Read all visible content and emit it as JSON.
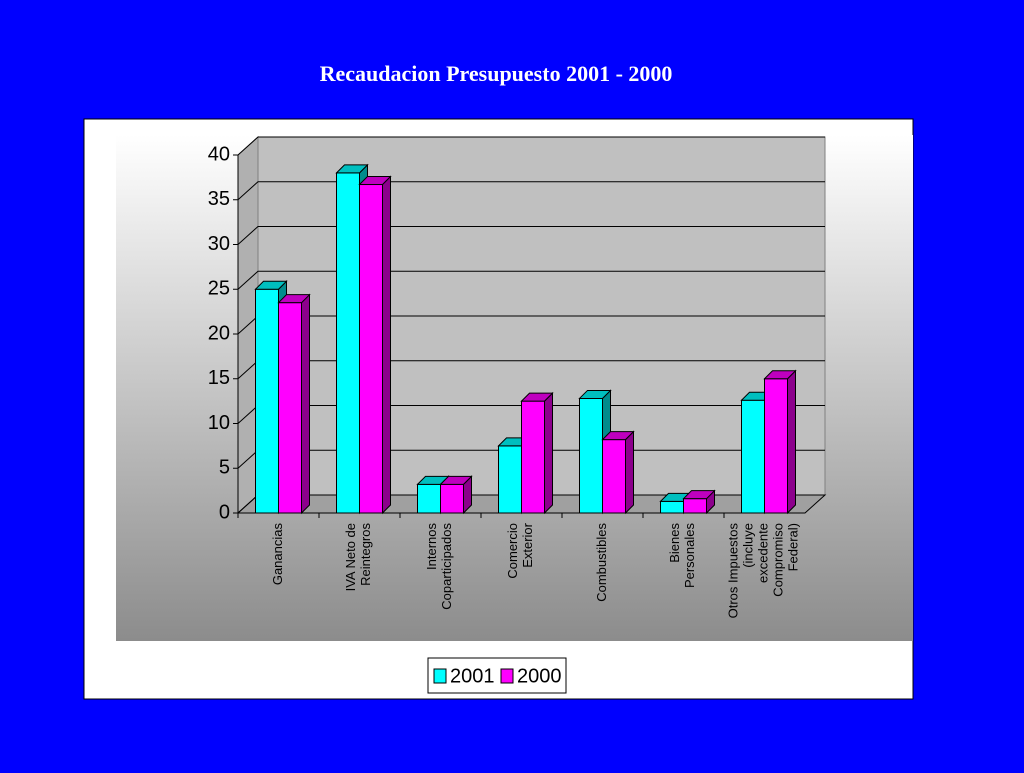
{
  "chart_data": {
    "type": "bar3d",
    "title": "Recaudacion Presupuesto 2001 - 2000",
    "categories": [
      "Ganancias",
      "IVA Neto de\nReintegros",
      "Internos\nCoparticipados",
      "Comercio\nExterior",
      "Combustibles",
      "Bienes\nPersonales",
      "Otros Impuestos\n(incluye\nexcedente\nCompromiso\nFederal)"
    ],
    "series": [
      {
        "name": "2001",
        "color": "#00ffff",
        "values": [
          25,
          38,
          3.2,
          7.5,
          12.8,
          1.3,
          12.6
        ]
      },
      {
        "name": "2000",
        "color": "#ff00ff",
        "values": [
          23.5,
          36.7,
          3.2,
          12.5,
          8.2,
          1.6,
          15
        ]
      }
    ],
    "ylim": [
      0,
      40
    ],
    "yticks": [
      0,
      5,
      10,
      15,
      20,
      25,
      30,
      35,
      40
    ],
    "grid": true,
    "legend": "bottom"
  }
}
